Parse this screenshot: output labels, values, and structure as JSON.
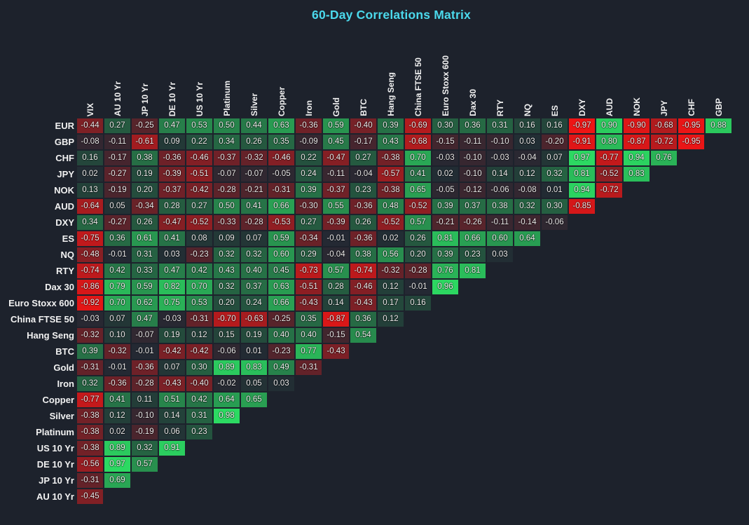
{
  "title": "60-Day Correlations Matrix",
  "colors": {
    "background": "#1d222c",
    "title_text": "#4bd9ec",
    "cell_text": "#eceaea",
    "label_text": "#f2f2f2",
    "positive_max": "#2cde63",
    "negative_max": "#f41414",
    "zero_cell": "#222933"
  },
  "chart_data": {
    "type": "heatmap",
    "title": "60-Day Correlations Matrix",
    "layout": "lower-triangular correlation matrix, row labels left, rotated column labels top",
    "value_range": [
      -1,
      1
    ],
    "value_format": "0.00",
    "grid": "off",
    "legend": "none",
    "columns": [
      "VIX",
      "AU 10 Yr",
      "JP 10 Yr",
      "DE 10 Yr",
      "US 10 Yr",
      "Platinum",
      "Silver",
      "Copper",
      "Iron",
      "Gold",
      "BTC",
      "Hang Seng",
      "China FTSE 50",
      "Euro Stoxx 600",
      "Dax 30",
      "RTY",
      "NQ",
      "ES",
      "DXY",
      "AUD",
      "NOK",
      "JPY",
      "CHF",
      "GBP"
    ],
    "rows": [
      {
        "label": "EUR",
        "values": [
          -0.44,
          0.27,
          -0.25,
          0.47,
          0.53,
          0.5,
          0.44,
          0.63,
          -0.36,
          0.59,
          -0.4,
          0.39,
          -0.69,
          0.3,
          0.36,
          0.31,
          0.16,
          0.16,
          -0.97,
          0.9,
          -0.9,
          -0.68,
          -0.95,
          0.88
        ]
      },
      {
        "label": "GBP",
        "values": [
          -0.08,
          -0.11,
          -0.61,
          0.09,
          0.22,
          0.34,
          0.26,
          0.35,
          -0.09,
          0.45,
          -0.17,
          0.43,
          -0.68,
          -0.15,
          -0.11,
          -0.1,
          0.03,
          -0.2,
          -0.91,
          0.8,
          -0.87,
          -0.72,
          -0.95
        ]
      },
      {
        "label": "CHF",
        "values": [
          0.16,
          -0.17,
          0.38,
          -0.36,
          -0.46,
          -0.37,
          -0.32,
          -0.46,
          0.22,
          -0.47,
          0.27,
          -0.38,
          0.7,
          -0.03,
          -0.1,
          -0.03,
          -0.04,
          0.07,
          0.97,
          -0.77,
          0.94,
          0.76
        ]
      },
      {
        "label": "JPY",
        "values": [
          0.02,
          -0.27,
          0.19,
          -0.39,
          -0.51,
          -0.07,
          -0.07,
          -0.05,
          0.24,
          -0.11,
          -0.04,
          -0.57,
          0.41,
          0.02,
          -0.1,
          0.14,
          0.12,
          0.32,
          0.81,
          -0.52,
          0.83
        ]
      },
      {
        "label": "NOK",
        "values": [
          0.13,
          -0.19,
          0.2,
          -0.37,
          -0.42,
          -0.28,
          -0.21,
          -0.31,
          0.39,
          -0.37,
          0.23,
          -0.38,
          0.65,
          -0.05,
          -0.12,
          -0.06,
          -0.08,
          0.01,
          0.94,
          -0.72
        ]
      },
      {
        "label": "AUD",
        "values": [
          -0.64,
          0.05,
          -0.34,
          0.28,
          0.27,
          0.5,
          0.41,
          0.66,
          -0.3,
          0.55,
          -0.36,
          0.48,
          -0.52,
          0.39,
          0.37,
          0.38,
          0.32,
          0.3,
          -0.85
        ]
      },
      {
        "label": "DXY",
        "values": [
          0.34,
          -0.27,
          0.26,
          -0.47,
          -0.52,
          -0.33,
          -0.28,
          -0.53,
          0.27,
          -0.39,
          0.26,
          -0.52,
          0.57,
          -0.21,
          -0.26,
          -0.11,
          -0.14,
          -0.06
        ]
      },
      {
        "label": "ES",
        "values": [
          -0.75,
          0.36,
          0.61,
          0.41,
          0.08,
          0.09,
          0.07,
          0.59,
          -0.34,
          -0.01,
          -0.36,
          0.02,
          0.26,
          0.81,
          0.66,
          0.6,
          0.64
        ]
      },
      {
        "label": "NQ",
        "values": [
          -0.48,
          -0.01,
          0.31,
          0.03,
          -0.23,
          0.32,
          0.32,
          0.6,
          0.29,
          -0.04,
          0.38,
          0.56,
          0.2,
          0.39,
          0.23,
          0.03
        ]
      },
      {
        "label": "RTY",
        "values": [
          -0.74,
          0.42,
          0.33,
          0.47,
          0.42,
          0.43,
          0.4,
          0.45,
          -0.73,
          0.57,
          -0.74,
          -0.32,
          -0.28,
          0.76,
          0.81
        ]
      },
      {
        "label": "Dax 30",
        "values": [
          -0.86,
          0.79,
          0.59,
          0.82,
          0.7,
          0.32,
          0.37,
          0.63,
          -0.51,
          0.28,
          -0.46,
          0.12,
          -0.01,
          0.96
        ]
      },
      {
        "label": "Euro Stoxx 600",
        "values": [
          -0.92,
          0.7,
          0.62,
          0.75,
          0.53,
          0.2,
          0.24,
          0.66,
          -0.43,
          0.14,
          -0.43,
          0.17,
          0.16
        ]
      },
      {
        "label": "China FTSE 50",
        "values": [
          -0.03,
          0.07,
          0.47,
          -0.03,
          -0.31,
          -0.7,
          -0.63,
          -0.25,
          0.35,
          -0.87,
          0.36,
          0.12
        ]
      },
      {
        "label": "Hang Seng",
        "values": [
          -0.32,
          0.1,
          -0.07,
          0.19,
          0.12,
          0.15,
          0.19,
          0.4,
          0.4,
          -0.15,
          0.54
        ]
      },
      {
        "label": "BTC",
        "values": [
          0.39,
          -0.32,
          -0.01,
          -0.42,
          -0.42,
          -0.06,
          0.01,
          -0.23,
          0.77,
          -0.43
        ]
      },
      {
        "label": "Gold",
        "values": [
          -0.31,
          -0.01,
          -0.36,
          0.07,
          0.3,
          0.89,
          0.83,
          0.49,
          -0.31
        ]
      },
      {
        "label": "Iron",
        "values": [
          0.32,
          -0.36,
          -0.28,
          -0.43,
          -0.4,
          -0.02,
          0.05,
          0.03
        ]
      },
      {
        "label": "Copper",
        "values": [
          -0.77,
          0.41,
          0.11,
          0.51,
          0.42,
          0.64,
          0.65
        ]
      },
      {
        "label": "Silver",
        "values": [
          -0.38,
          0.12,
          -0.1,
          0.14,
          0.31,
          0.98
        ]
      },
      {
        "label": "Platinum",
        "values": [
          -0.38,
          0.02,
          -0.19,
          0.06,
          0.23
        ]
      },
      {
        "label": "US 10 Yr",
        "values": [
          -0.38,
          0.89,
          0.32,
          0.91
        ]
      },
      {
        "label": "DE 10 Yr",
        "values": [
          -0.56,
          0.97,
          0.57
        ]
      },
      {
        "label": "JP 10 Yr",
        "values": [
          -0.31,
          0.69
        ]
      },
      {
        "label": "AU 10 Yr",
        "values": [
          -0.45
        ]
      }
    ]
  }
}
